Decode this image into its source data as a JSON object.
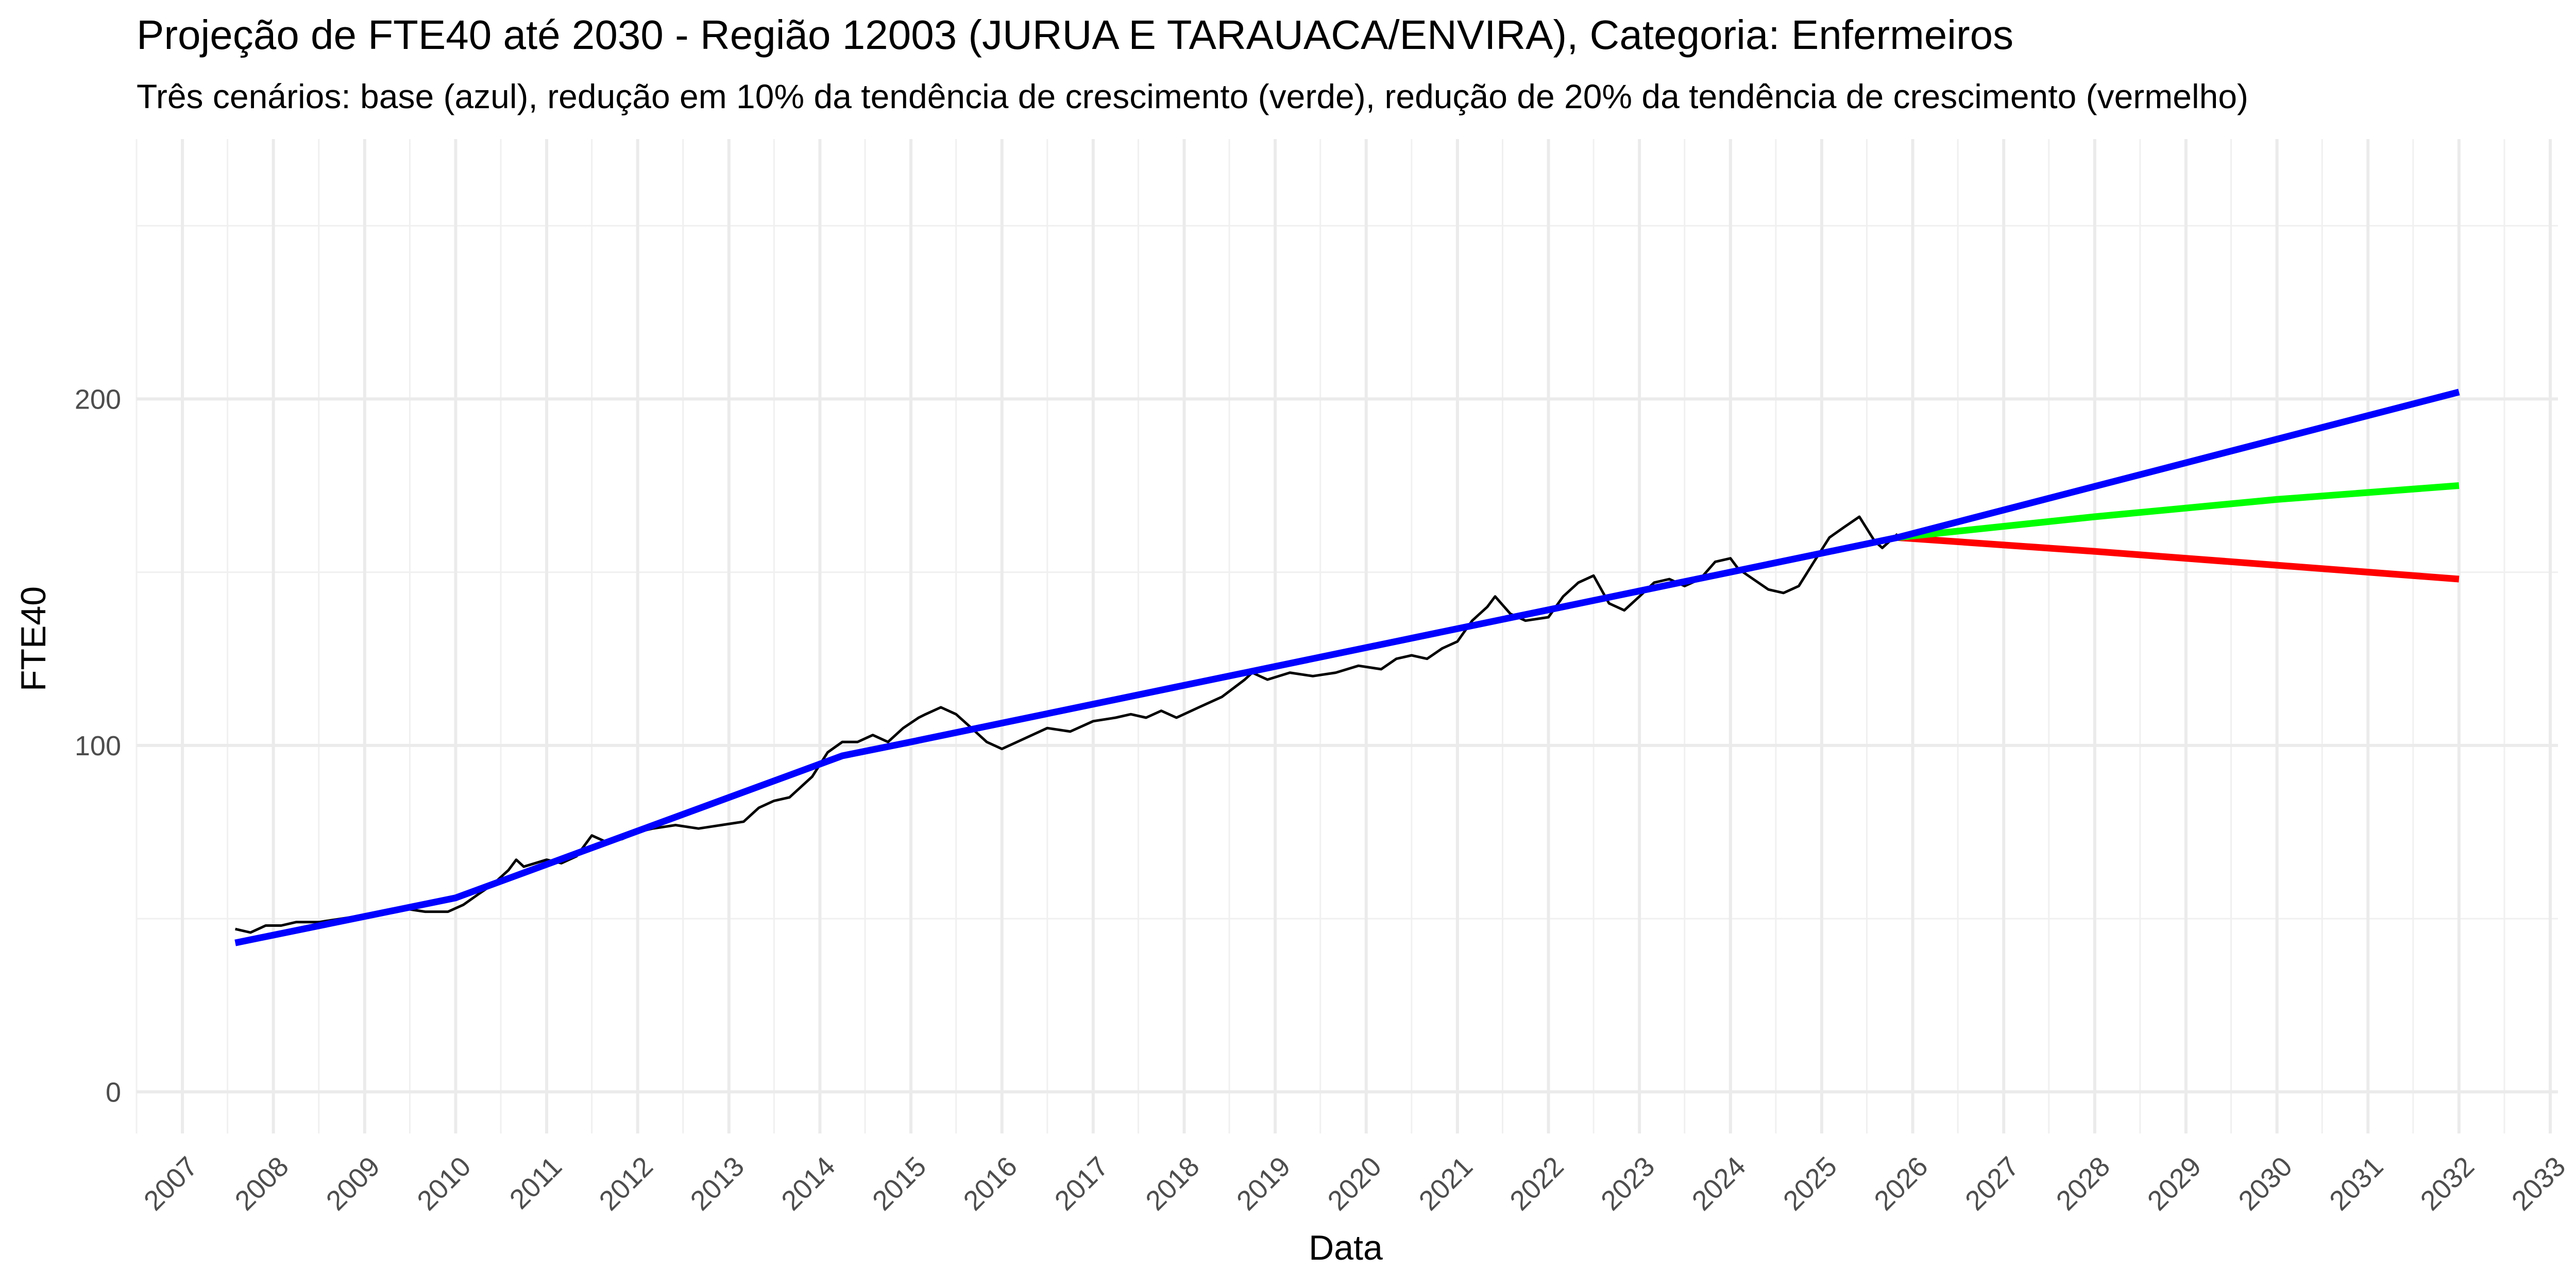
{
  "chart_data": {
    "type": "line",
    "title": "Projeção de FTE40 até 2030 - Região 12003 (JURUA E TARAUACA/ENVIRA), Categoria: Enfermeiros",
    "subtitle": "Três cenários: base (azul), redução em 10% da tendência de crescimento (verde), redução de 20% da tendência de crescimento (vermelho)",
    "xlabel": "Data",
    "ylabel": "FTE40",
    "xlim": [
      "2006-07-01",
      "2033-02-01"
    ],
    "ylim": [
      -12,
      275
    ],
    "x_ticks": [
      "2007",
      "2008",
      "2009",
      "2010",
      "2011",
      "2012",
      "2013",
      "2014",
      "2015",
      "2016",
      "2017",
      "2018",
      "2019",
      "2020",
      "2021",
      "2022",
      "2023",
      "2024",
      "2025",
      "2026",
      "2027",
      "2028",
      "2029",
      "2030",
      "2031",
      "2032",
      "2033"
    ],
    "y_ticks": [
      0,
      100,
      200
    ],
    "grid": true,
    "legend": "none",
    "series": [
      {
        "color": "#000000",
        "points": [
          [
            "2007-08-01",
            47
          ],
          [
            "2007-10-01",
            46
          ],
          [
            "2007-12-01",
            48
          ],
          [
            "2008-02-01",
            48
          ],
          [
            "2008-04-01",
            49
          ],
          [
            "2008-07-01",
            49
          ],
          [
            "2008-10-01",
            50
          ],
          [
            "2009-01-01",
            51
          ],
          [
            "2009-04-01",
            52
          ],
          [
            "2009-06-01",
            53
          ],
          [
            "2009-09-01",
            52
          ],
          [
            "2009-12-01",
            52
          ],
          [
            "2010-02-01",
            54
          ],
          [
            "2010-04-01",
            57
          ],
          [
            "2010-06-01",
            60
          ],
          [
            "2010-08-01",
            64
          ],
          [
            "2010-09-01",
            67
          ],
          [
            "2010-10-01",
            65
          ],
          [
            "2011-01-01",
            67
          ],
          [
            "2011-03-01",
            66
          ],
          [
            "2011-05-01",
            68
          ],
          [
            "2011-07-01",
            74
          ],
          [
            "2011-09-01",
            72
          ],
          [
            "2011-11-01",
            73
          ],
          [
            "2012-01-01",
            75
          ],
          [
            "2012-03-01",
            76
          ],
          [
            "2012-06-01",
            77
          ],
          [
            "2012-09-01",
            76
          ],
          [
            "2012-12-01",
            77
          ],
          [
            "2013-03-01",
            78
          ],
          [
            "2013-05-01",
            82
          ],
          [
            "2013-07-01",
            84
          ],
          [
            "2013-09-01",
            85
          ],
          [
            "2013-12-01",
            91
          ],
          [
            "2014-02-01",
            98
          ],
          [
            "2014-04-01",
            101
          ],
          [
            "2014-06-01",
            101
          ],
          [
            "2014-08-01",
            103
          ],
          [
            "2014-10-01",
            101
          ],
          [
            "2014-12-01",
            105
          ],
          [
            "2015-02-01",
            108
          ],
          [
            "2015-03-01",
            109
          ],
          [
            "2015-05-01",
            111
          ],
          [
            "2015-07-01",
            109
          ],
          [
            "2015-09-01",
            105
          ],
          [
            "2015-11-01",
            101
          ],
          [
            "2016-01-01",
            99
          ],
          [
            "2016-04-01",
            102
          ],
          [
            "2016-07-01",
            105
          ],
          [
            "2016-10-01",
            104
          ],
          [
            "2017-01-01",
            107
          ],
          [
            "2017-04-01",
            108
          ],
          [
            "2017-06-01",
            109
          ],
          [
            "2017-08-01",
            108
          ],
          [
            "2017-10-01",
            110
          ],
          [
            "2017-12-01",
            108
          ],
          [
            "2018-03-01",
            111
          ],
          [
            "2018-06-01",
            114
          ],
          [
            "2018-09-01",
            119
          ],
          [
            "2018-10-01",
            121
          ],
          [
            "2018-12-01",
            119
          ],
          [
            "2019-03-01",
            121
          ],
          [
            "2019-06-01",
            120
          ],
          [
            "2019-09-01",
            121
          ],
          [
            "2019-12-01",
            123
          ],
          [
            "2020-03-01",
            122
          ],
          [
            "2020-05-01",
            125
          ],
          [
            "2020-07-01",
            126
          ],
          [
            "2020-09-01",
            125
          ],
          [
            "2020-11-01",
            128
          ],
          [
            "2021-01-01",
            130
          ],
          [
            "2021-03-01",
            136
          ],
          [
            "2021-05-01",
            140
          ],
          [
            "2021-06-01",
            143
          ],
          [
            "2021-08-01",
            138
          ],
          [
            "2021-10-01",
            136
          ],
          [
            "2022-01-01",
            137
          ],
          [
            "2022-03-01",
            143
          ],
          [
            "2022-05-01",
            147
          ],
          [
            "2022-07-01",
            149
          ],
          [
            "2022-09-01",
            141
          ],
          [
            "2022-11-01",
            139
          ],
          [
            "2023-01-01",
            143
          ],
          [
            "2023-03-01",
            147
          ],
          [
            "2023-05-01",
            148
          ],
          [
            "2023-07-01",
            146
          ],
          [
            "2023-09-01",
            148
          ],
          [
            "2023-11-01",
            153
          ],
          [
            "2024-01-01",
            154
          ],
          [
            "2024-02-01",
            151
          ],
          [
            "2024-04-01",
            148
          ],
          [
            "2024-06-01",
            145
          ],
          [
            "2024-08-01",
            144
          ],
          [
            "2024-10-01",
            146
          ],
          [
            "2024-12-01",
            153
          ],
          [
            "2025-02-01",
            160
          ],
          [
            "2025-04-01",
            163
          ],
          [
            "2025-06-01",
            166
          ],
          [
            "2025-08-01",
            159
          ],
          [
            "2025-09-01",
            157
          ],
          [
            "2025-11-01",
            161
          ]
        ]
      },
      {
        "color": "#0000ff",
        "points": [
          [
            "2007-08-01",
            43
          ],
          [
            "2010-01-01",
            56
          ],
          [
            "2014-04-01",
            97
          ],
          [
            "2015-01-01",
            101
          ],
          [
            "2025-11-01",
            160
          ],
          [
            "2032-01-01",
            202
          ]
        ]
      },
      {
        "color": "#00ff00",
        "points": [
          [
            "2025-11-01",
            160
          ],
          [
            "2028-01-01",
            166
          ],
          [
            "2030-01-01",
            171
          ],
          [
            "2032-01-01",
            175
          ]
        ]
      },
      {
        "color": "#ff0000",
        "points": [
          [
            "2025-11-01",
            160
          ],
          [
            "2028-01-01",
            156
          ],
          [
            "2030-01-01",
            152
          ],
          [
            "2032-01-01",
            148
          ]
        ]
      }
    ]
  }
}
